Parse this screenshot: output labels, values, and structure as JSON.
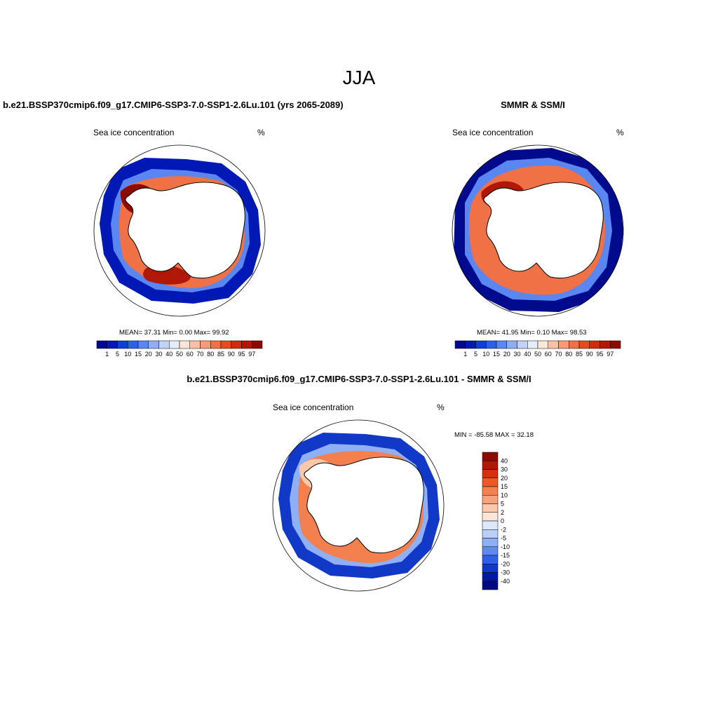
{
  "figure": {
    "season_title": "JJA",
    "variable_label": "Sea ice concentration",
    "units": "%"
  },
  "panels": [
    {
      "id": "model",
      "title": "b.e21.BSSP370cmip6.f09_g17.CMIP6-SSP3-7.0-SSP1-2.6Lu.101 (yrs 2065-2089)",
      "stats": "MEAN=  37.31  Min=   0.00  Max=  99.92"
    },
    {
      "id": "obs",
      "title": "SMMR & SSM/I",
      "stats": "MEAN=  41.95  Min=   0.10  Max=  98.53"
    },
    {
      "id": "diff",
      "title": "b.e21.BSSP370cmip6.f09_g17.CMIP6-SSP3-7.0-SSP1-2.6Lu.101 - SMMR & SSM/I",
      "stats": "MIN = -85.58 MAX =  32.18"
    }
  ],
  "colorbar_abs": {
    "labels": [
      "1",
      "5",
      "10",
      "15",
      "20",
      "30",
      "40",
      "50",
      "60",
      "70",
      "80",
      "85",
      "90",
      "95",
      "97"
    ],
    "colors": [
      "#000a8c",
      "#0019b4",
      "#0c3fd9",
      "#2a62ee",
      "#5a86f2",
      "#8fadf5",
      "#c0d3f7",
      "#e4eefa",
      "#fde6d8",
      "#fbc1a6",
      "#f79a77",
      "#f17147",
      "#e64a1f",
      "#d02c0c",
      "#b01705",
      "#8c0a00"
    ]
  },
  "colorbar_diff": {
    "labels": [
      "40",
      "30",
      "20",
      "15",
      "10",
      "5",
      "2",
      "0",
      "-2",
      "-5",
      "-10",
      "-15",
      "-20",
      "-30",
      "-40"
    ],
    "colors": [
      "#8c0a00",
      "#b01705",
      "#d62f0c",
      "#ec5a28",
      "#f4804f",
      "#f8a37c",
      "#fbc8ab",
      "#fde6d8",
      "#dce8fa",
      "#b8cff8",
      "#8fb0f5",
      "#5f88f0",
      "#3160e6",
      "#1238c8",
      "#0219a6",
      "#000a80"
    ]
  }
}
